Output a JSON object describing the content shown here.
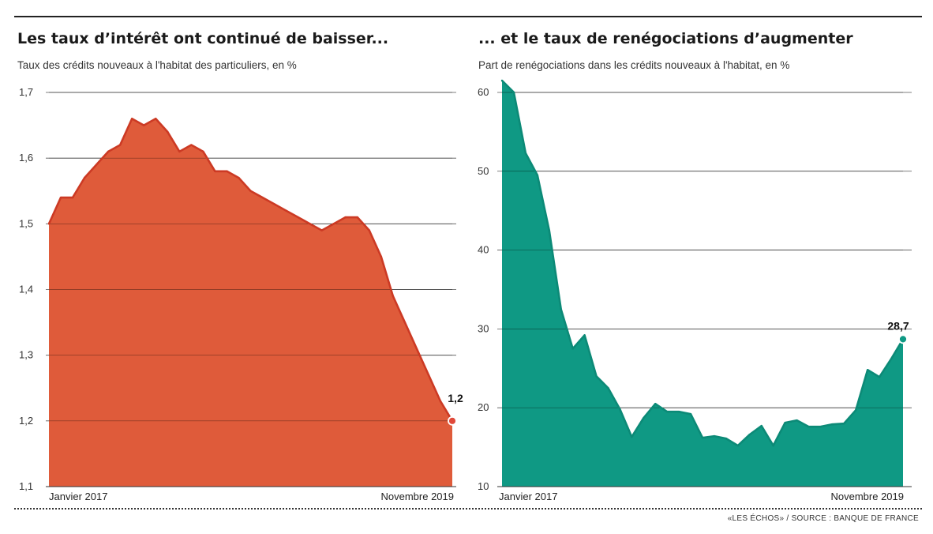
{
  "chart_data": [
    {
      "type": "area",
      "title": "Les taux d’intérêt ont continué de baisser...",
      "subtitle": "Taux des crédits nouveaux à l'habitat des particuliers, en %",
      "ylim": [
        1.1,
        1.7
      ],
      "yticks": [
        "1,7",
        "1,6",
        "1,5",
        "1,4",
        "1,3",
        "1,2",
        "1,1"
      ],
      "ytick_values": [
        1.7,
        1.6,
        1.5,
        1.4,
        1.3,
        1.2,
        1.1
      ],
      "x_start_label": "Janvier 2017",
      "x_end_label": "Novembre 2019",
      "grid": true,
      "color": "#df5b3a",
      "line_color": "#cc3a24",
      "end_label": "1,2",
      "values": [
        1.5,
        1.54,
        1.54,
        1.57,
        1.59,
        1.61,
        1.62,
        1.66,
        1.65,
        1.66,
        1.64,
        1.61,
        1.62,
        1.61,
        1.58,
        1.58,
        1.57,
        1.55,
        1.54,
        1.53,
        1.52,
        1.51,
        1.5,
        1.49,
        1.5,
        1.51,
        1.51,
        1.49,
        1.45,
        1.39,
        1.35,
        1.31,
        1.27,
        1.23,
        1.2
      ]
    },
    {
      "type": "area",
      "title": "... et le taux de renégociations d’augmenter",
      "subtitle": "Part de renégociations dans les crédits nouveaux à l'habitat, en %",
      "ylim": [
        10,
        61.5
      ],
      "yticks": [
        "60",
        "50",
        "40",
        "30",
        "20",
        "10"
      ],
      "ytick_values": [
        60,
        50,
        40,
        30,
        20,
        10
      ],
      "x_start_label": "Janvier 2017",
      "x_end_label": "Novembre 2019",
      "grid": true,
      "color": "#0f9984",
      "line_color": "#0c8a77",
      "end_label": "28,7",
      "values": [
        61.5,
        60.0,
        52.3,
        49.5,
        42.5,
        32.5,
        27.5,
        29.2,
        24.0,
        22.5,
        19.8,
        16.3,
        18.7,
        20.5,
        19.5,
        19.5,
        19.2,
        16.2,
        16.4,
        16.1,
        15.2,
        16.6,
        17.7,
        15.2,
        18.1,
        18.4,
        17.6,
        17.6,
        17.9,
        18.0,
        19.7,
        24.8,
        23.9,
        26.2,
        28.7
      ]
    }
  ],
  "source": "«LES ÉCHOS» / SOURCE : BANQUE DE FRANCE"
}
